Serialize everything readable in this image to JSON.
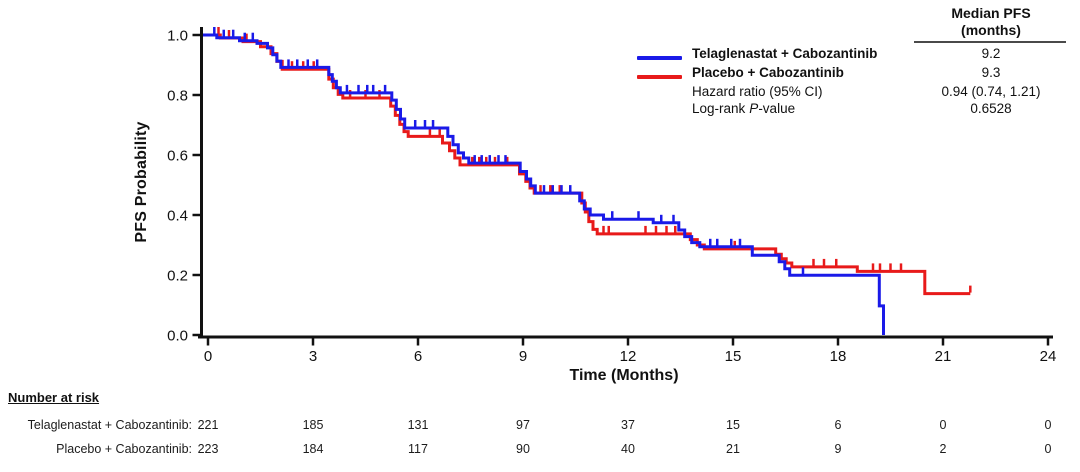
{
  "chart_data": {
    "type": "line",
    "subtype": "kaplan-meier-step",
    "title": "",
    "xlabel": "Time (Months)",
    "ylabel": "PFS Probability",
    "xlim": [
      0,
      24
    ],
    "ylim": [
      0.0,
      1.0
    ],
    "x_ticks": [
      0,
      3,
      6,
      9,
      12,
      15,
      18,
      21,
      24
    ],
    "y_ticks": [
      "0.0",
      "0.2",
      "0.4",
      "0.6",
      "0.8",
      "1.0"
    ],
    "grid": false,
    "legend_position": "top-right",
    "axis_color": "#111111",
    "series": [
      {
        "name": "Telaglenastat + Cabozantinib",
        "color": "#1a1ae8",
        "median_pfs": "9.2",
        "steps": [
          [
            0,
            1.0
          ],
          [
            0.25,
            0.991
          ],
          [
            0.9,
            0.981
          ],
          [
            1.4,
            0.972
          ],
          [
            1.7,
            0.957
          ],
          [
            1.85,
            0.934
          ],
          [
            1.97,
            0.913
          ],
          [
            2.08,
            0.892
          ],
          [
            3.45,
            0.868
          ],
          [
            3.55,
            0.846
          ],
          [
            3.67,
            0.824
          ],
          [
            3.78,
            0.807
          ],
          [
            5.25,
            0.783
          ],
          [
            5.38,
            0.752
          ],
          [
            5.5,
            0.72
          ],
          [
            5.62,
            0.69
          ],
          [
            6.85,
            0.662
          ],
          [
            7.0,
            0.634
          ],
          [
            7.15,
            0.607
          ],
          [
            7.3,
            0.59
          ],
          [
            7.45,
            0.573
          ],
          [
            8.92,
            0.545
          ],
          [
            9.1,
            0.52
          ],
          [
            9.22,
            0.497
          ],
          [
            9.35,
            0.473
          ],
          [
            10.62,
            0.447
          ],
          [
            10.75,
            0.42
          ],
          [
            10.92,
            0.4
          ],
          [
            11.3,
            0.386
          ],
          [
            12.72,
            0.374
          ],
          [
            13.45,
            0.35
          ],
          [
            13.62,
            0.328
          ],
          [
            13.82,
            0.308
          ],
          [
            14.05,
            0.294
          ],
          [
            15.55,
            0.266
          ],
          [
            16.32,
            0.244
          ],
          [
            16.48,
            0.221
          ],
          [
            16.62,
            0.199
          ],
          [
            19.18,
            0.097
          ],
          [
            19.3,
            0.0
          ]
        ],
        "censor_times": [
          0.18,
          0.45,
          0.72,
          1.05,
          1.28,
          2.3,
          2.55,
          2.85,
          3.12,
          3.97,
          4.3,
          4.55,
          4.72,
          5.06,
          5.92,
          6.2,
          6.43,
          7.62,
          7.82,
          8.05,
          8.3,
          8.5,
          9.6,
          9.85,
          10.1,
          10.35,
          11.55,
          12.3,
          12.95,
          13.3,
          14.35,
          14.55,
          14.95,
          15.2,
          17.0
        ]
      },
      {
        "name": "Placebo + Cabozantinib",
        "color": "#e81a1a",
        "median_pfs": "9.3",
        "steps": [
          [
            0,
            1.0
          ],
          [
            0.35,
            0.99
          ],
          [
            1.0,
            0.978
          ],
          [
            1.5,
            0.961
          ],
          [
            1.8,
            0.938
          ],
          [
            1.97,
            0.912
          ],
          [
            2.12,
            0.886
          ],
          [
            3.45,
            0.853
          ],
          [
            3.58,
            0.824
          ],
          [
            3.72,
            0.802
          ],
          [
            3.85,
            0.79
          ],
          [
            5.22,
            0.763
          ],
          [
            5.35,
            0.732
          ],
          [
            5.48,
            0.702
          ],
          [
            5.6,
            0.678
          ],
          [
            5.72,
            0.662
          ],
          [
            6.7,
            0.64
          ],
          [
            6.9,
            0.614
          ],
          [
            7.05,
            0.59
          ],
          [
            7.2,
            0.567
          ],
          [
            8.9,
            0.537
          ],
          [
            9.08,
            0.512
          ],
          [
            9.2,
            0.49
          ],
          [
            9.32,
            0.473
          ],
          [
            10.68,
            0.44
          ],
          [
            10.78,
            0.41
          ],
          [
            10.88,
            0.378
          ],
          [
            11.0,
            0.352
          ],
          [
            11.12,
            0.337
          ],
          [
            13.78,
            0.318
          ],
          [
            13.98,
            0.3
          ],
          [
            14.18,
            0.287
          ],
          [
            16.22,
            0.269
          ],
          [
            16.38,
            0.254
          ],
          [
            16.52,
            0.24
          ],
          [
            16.68,
            0.227
          ],
          [
            18.55,
            0.212
          ],
          [
            20.48,
            0.138
          ],
          [
            21.78,
            0.138
          ]
        ],
        "censor_times": [
          0.3,
          0.6,
          1.1,
          2.4,
          2.72,
          3.02,
          4.06,
          4.5,
          4.9,
          6.34,
          6.62,
          7.55,
          7.75,
          7.95,
          8.2,
          8.55,
          9.5,
          9.78,
          10.05,
          11.3,
          11.45,
          12.5,
          12.8,
          13.1,
          13.35,
          15.05,
          17.3,
          17.6,
          17.95,
          19.0,
          19.2,
          19.5,
          19.8,
          21.78
        ]
      }
    ],
    "stats": {
      "median_header_line1": "Median PFS",
      "median_header_line2": "(months)",
      "hazard_ratio_label": "Hazard ratio (95% CI)",
      "hazard_ratio_value": "0.94 (0.74, 1.21)",
      "logrank_label_pre": "Log-rank",
      "logrank_label_italic": "P",
      "logrank_label_post": "-value",
      "logrank_value": "0.6528"
    }
  },
  "number_at_risk": {
    "title": "Number at risk",
    "rows": [
      {
        "label": "Telaglenastat + Cabozantinib:",
        "counts": [
          221,
          185,
          131,
          97,
          37,
          15,
          6,
          0,
          0
        ]
      },
      {
        "label": "Placebo + Cabozantinib:",
        "counts": [
          223,
          184,
          117,
          90,
          40,
          21,
          9,
          2,
          0
        ]
      }
    ]
  }
}
